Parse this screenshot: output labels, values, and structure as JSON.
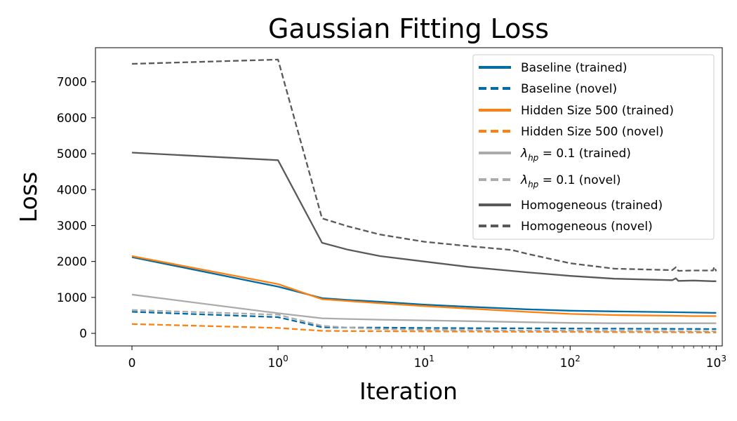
{
  "chart_data": {
    "type": "line",
    "title": "Gaussian Fitting Loss",
    "xlabel": "Iteration",
    "ylabel": "Loss",
    "xscale": "symlog",
    "xlim": [
      -0.25,
      1100
    ],
    "ylim": [
      -350,
      7950
    ],
    "grid": false,
    "legend_position": "top-right",
    "x_ticks": [
      {
        "value": 0,
        "base": "0",
        "exp": ""
      },
      {
        "value": 1,
        "base": "10",
        "exp": "0"
      },
      {
        "value": 10,
        "base": "10",
        "exp": "1"
      },
      {
        "value": 100,
        "base": "10",
        "exp": "2"
      },
      {
        "value": 1000,
        "base": "10",
        "exp": "3"
      }
    ],
    "y_ticks": [
      {
        "value": 0,
        "label": "0"
      },
      {
        "value": 1000,
        "label": "1000"
      },
      {
        "value": 2000,
        "label": "2000"
      },
      {
        "value": 3000,
        "label": "3000"
      },
      {
        "value": 4000,
        "label": "4000"
      },
      {
        "value": 5000,
        "label": "5000"
      },
      {
        "value": 6000,
        "label": "6000"
      },
      {
        "value": 7000,
        "label": "7000"
      }
    ],
    "series": [
      {
        "name": "Baseline (trained)",
        "color": "#006ba4",
        "dash": "solid",
        "x": [
          0,
          1,
          2,
          3,
          5,
          10,
          20,
          50,
          100,
          200,
          500,
          700,
          1000
        ],
        "y": [
          2120,
          1300,
          980,
          930,
          880,
          800,
          740,
          670,
          630,
          610,
          590,
          580,
          570
        ]
      },
      {
        "name": "Baseline (novel)",
        "color": "#006ba4",
        "dash": "dashed",
        "x": [
          0,
          1,
          2,
          3,
          5,
          10,
          20,
          50,
          100,
          200,
          500,
          1000
        ],
        "y": [
          600,
          450,
          170,
          160,
          160,
          150,
          145,
          140,
          135,
          130,
          125,
          120
        ]
      },
      {
        "name": "Hidden Size 500 (trained)",
        "color": "#ff800e",
        "dash": "solid",
        "x": [
          0,
          1,
          2,
          3,
          5,
          10,
          20,
          50,
          100,
          200,
          500,
          700,
          1000
        ],
        "y": [
          2150,
          1370,
          950,
          900,
          840,
          760,
          690,
          600,
          540,
          510,
          490,
          480,
          480
        ]
      },
      {
        "name": "Hidden Size 500 (novel)",
        "color": "#ff800e",
        "dash": "dashed",
        "x": [
          0,
          1,
          2,
          3,
          5,
          10,
          20,
          50,
          100,
          200,
          500,
          1000
        ],
        "y": [
          260,
          150,
          70,
          65,
          60,
          55,
          50,
          45,
          40,
          35,
          30,
          25
        ]
      },
      {
        "name": "$\\lambda_{hp} = 0.1$ (trained)",
        "color": "#ababab",
        "dash": "solid",
        "x": [
          0,
          1,
          2,
          3,
          5,
          10,
          20,
          50,
          100,
          200,
          500,
          1000
        ],
        "y": [
          1080,
          560,
          420,
          400,
          380,
          360,
          340,
          310,
          290,
          280,
          280,
          280
        ]
      },
      {
        "name": "$\\lambda_{hp} = 0.1$ (novel)",
        "color": "#ababab",
        "dash": "dashed",
        "x": [
          0,
          1,
          2,
          3,
          5,
          10,
          20,
          50,
          100,
          200,
          500,
          1000
        ],
        "y": [
          650,
          520,
          210,
          160,
          120,
          100,
          90,
          80,
          75,
          70,
          65,
          60
        ]
      },
      {
        "name": "Homogeneous (trained)",
        "color": "#595959",
        "dash": "solid",
        "x": [
          0,
          1,
          2,
          3,
          5,
          10,
          20,
          50,
          100,
          200,
          500,
          530,
          550,
          700,
          950,
          1000
        ],
        "y": [
          5030,
          4820,
          2520,
          2330,
          2150,
          2000,
          1850,
          1700,
          1600,
          1520,
          1480,
          1530,
          1460,
          1470,
          1450,
          1450
        ]
      },
      {
        "name": "Homogeneous (novel)",
        "color": "#595959",
        "dash": "dashed",
        "x": [
          0,
          1,
          2,
          3,
          5,
          10,
          20,
          40,
          50,
          100,
          200,
          500,
          530,
          550,
          700,
          950,
          970,
          1000
        ],
        "y": [
          7500,
          7620,
          3200,
          2980,
          2750,
          2550,
          2430,
          2320,
          2220,
          1950,
          1800,
          1760,
          1840,
          1740,
          1750,
          1750,
          1850,
          1730
        ]
      }
    ],
    "legend": [
      {
        "label": "Baseline (trained)",
        "type": "plain"
      },
      {
        "label": "Baseline (novel)",
        "type": "plain"
      },
      {
        "label": "Hidden Size 500 (trained)",
        "type": "plain"
      },
      {
        "label": "Hidden Size 500 (novel)",
        "type": "plain"
      },
      {
        "label": "(trained)",
        "type": "lambda",
        "lambda_value": "0.1"
      },
      {
        "label": "(novel)",
        "type": "lambda",
        "lambda_value": "0.1"
      },
      {
        "label": "Homogeneous (trained)",
        "type": "plain"
      },
      {
        "label": "Homogeneous (novel)",
        "type": "plain"
      }
    ]
  }
}
